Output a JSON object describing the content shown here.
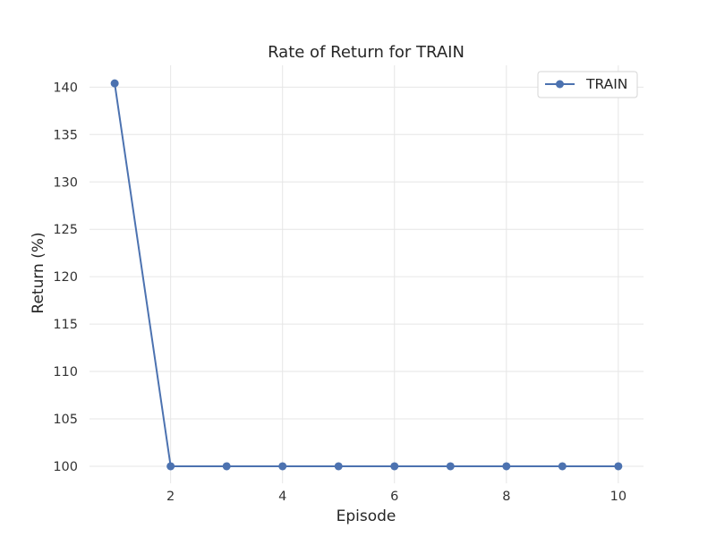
{
  "chart_data": {
    "type": "line",
    "title": "Rate of Return for TRAIN",
    "xlabel": "Episode",
    "ylabel": "Return (%)",
    "x": [
      1,
      2,
      3,
      4,
      5,
      6,
      7,
      8,
      9,
      10
    ],
    "series": [
      {
        "name": "TRAIN",
        "values": [
          140.4,
          100,
          100,
          100,
          100,
          100,
          100,
          100,
          100,
          100
        ],
        "color": "#4c72b0",
        "marker": "circle"
      }
    ],
    "xlim": [
      0.55,
      10.45
    ],
    "ylim": [
      98.2,
      142.3
    ],
    "x_ticks": [
      "2",
      "4",
      "6",
      "8",
      "10"
    ],
    "y_ticks": [
      "100",
      "105",
      "110",
      "115",
      "120",
      "125",
      "130",
      "135",
      "140"
    ],
    "grid": true,
    "legend_position": "top-right"
  }
}
